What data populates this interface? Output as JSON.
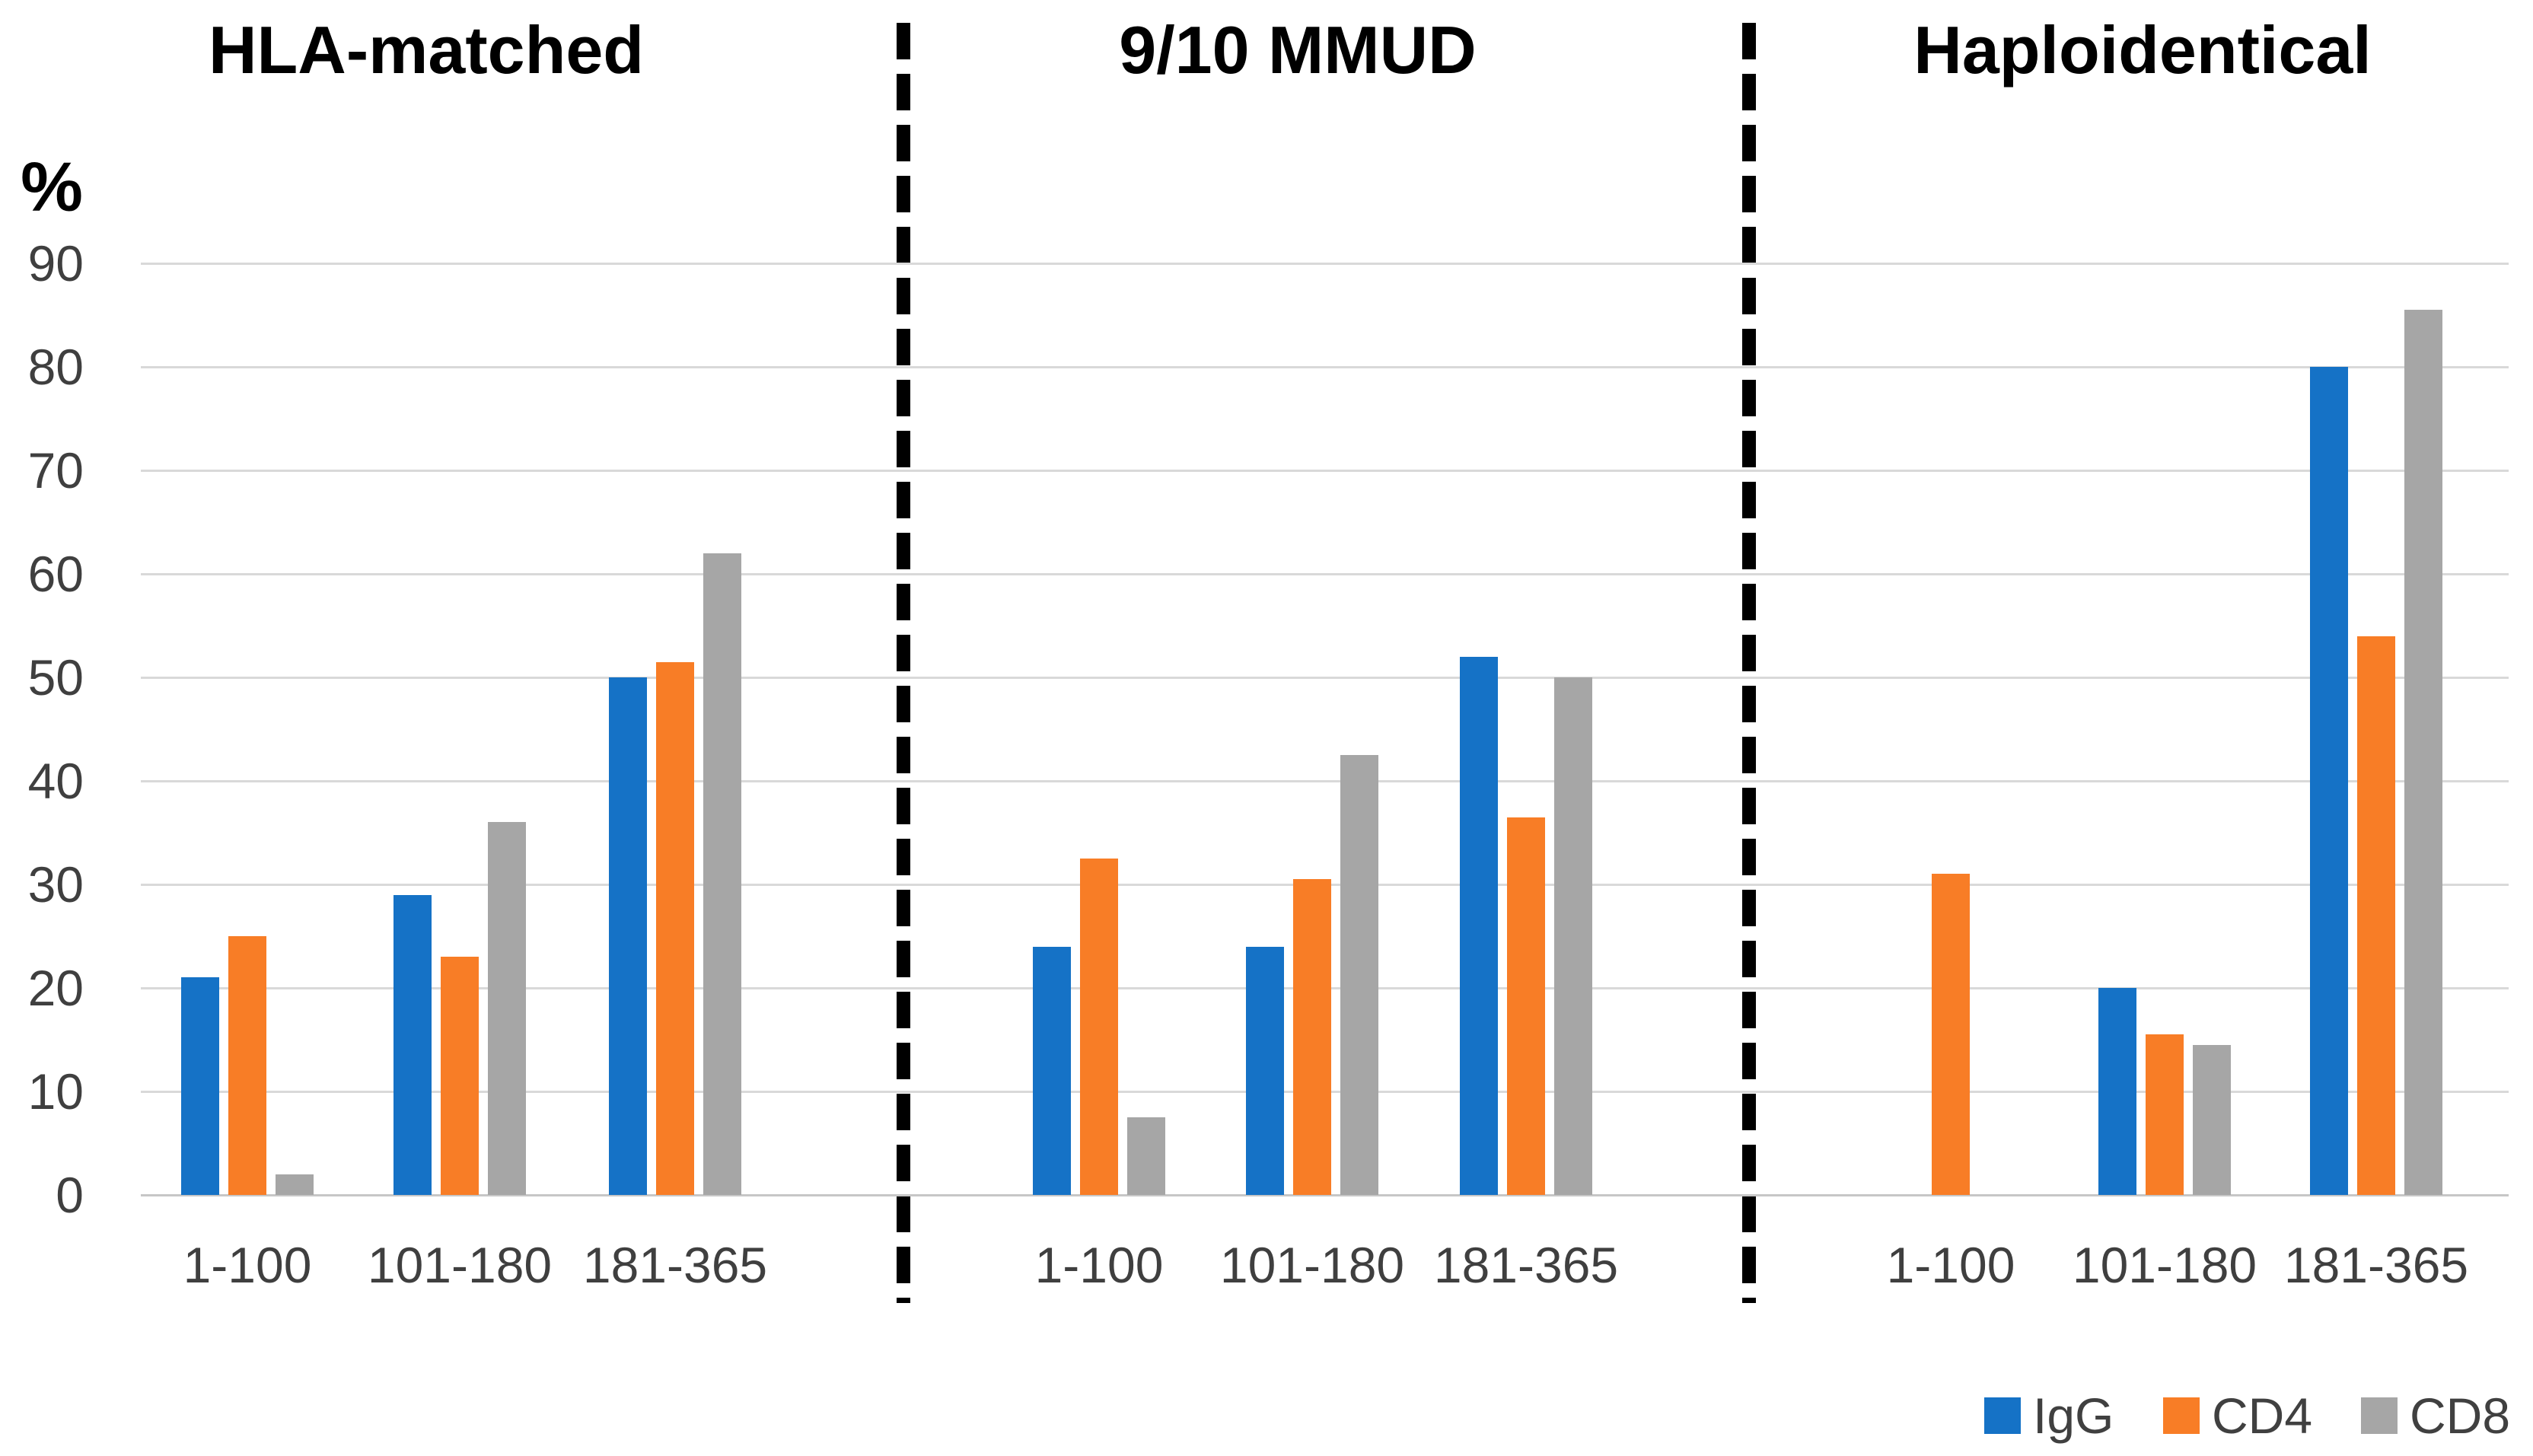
{
  "chart_data": {
    "type": "bar",
    "title": "",
    "ylabel": "%",
    "ylim": [
      0,
      90
    ],
    "ytick_interval": 10,
    "yticks": [
      0,
      10,
      20,
      30,
      40,
      50,
      60,
      70,
      80,
      90
    ],
    "grid": true,
    "legend_position": "bottom-right",
    "categories": [
      "1-100",
      "101-180",
      "181-365"
    ],
    "panels": [
      {
        "title": "HLA-matched",
        "series": [
          {
            "name": "IgG",
            "values": [
              21,
              29,
              50
            ]
          },
          {
            "name": "CD4",
            "values": [
              25,
              23,
              51.5
            ]
          },
          {
            "name": "CD8",
            "values": [
              2,
              36,
              62
            ]
          }
        ]
      },
      {
        "title": "9/10 MMUD",
        "series": [
          {
            "name": "IgG",
            "values": [
              24,
              24,
              52
            ]
          },
          {
            "name": "CD4",
            "values": [
              32.5,
              30.5,
              36.5
            ]
          },
          {
            "name": "CD8",
            "values": [
              7.5,
              42.5,
              50
            ]
          }
        ]
      },
      {
        "title": "Haploidentical",
        "series": [
          {
            "name": "IgG",
            "values": [
              0,
              20,
              80
            ]
          },
          {
            "name": "CD4",
            "values": [
              31,
              15.5,
              54
            ]
          },
          {
            "name": "CD8",
            "values": [
              0,
              14.5,
              85.5
            ]
          }
        ]
      }
    ],
    "legend": {
      "entries": [
        {
          "label": "IgG",
          "color": "#1572C6"
        },
        {
          "label": "CD4",
          "color": "#F87D26"
        },
        {
          "label": "CD8",
          "color": "#A6A6A6"
        }
      ]
    },
    "colors": {
      "IgG": "#1572C6",
      "CD4": "#F87D26",
      "CD8": "#A6A6A6",
      "gridline": "#D9D9D9",
      "separator": "#000000",
      "tick_text": "#3F3F3F"
    },
    "separator_style": "dashed"
  }
}
